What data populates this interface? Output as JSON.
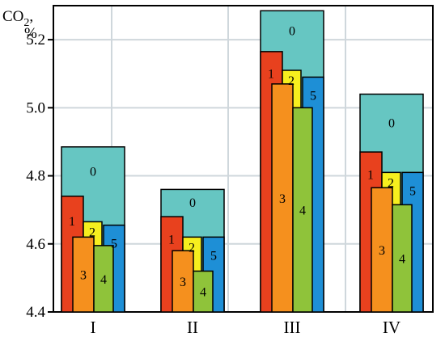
{
  "chart_data": {
    "type": "bar",
    "ylabel_main": "CO",
    "ylabel_sub": "2",
    "ylabel_tail": ",",
    "ylabel_unit": "%",
    "ylim": [
      4.4,
      5.3
    ],
    "yticks": [
      "4.4",
      "4.6",
      "4.8",
      "5.0",
      "5.2"
    ],
    "ytick_values": [
      4.4,
      4.6,
      4.8,
      5.0,
      5.2
    ],
    "grid": true,
    "categories": [
      "I",
      "II",
      "III",
      "IV"
    ],
    "series_labels": [
      "0",
      "1",
      "2",
      "3",
      "4",
      "5"
    ],
    "colors": {
      "0": "#66c6c2",
      "1": "#e8411e",
      "2": "#f6ef1e",
      "3": "#f5901e",
      "4": "#8fc33a",
      "5": "#1e8fd6",
      "grid": "#cfd7dc"
    },
    "groups": [
      {
        "category": "I",
        "values": {
          "0": 4.885,
          "1": 4.74,
          "2": 4.665,
          "3": 4.62,
          "4": 4.595,
          "5": 4.655
        }
      },
      {
        "category": "II",
        "values": {
          "0": 4.76,
          "1": 4.68,
          "2": 4.62,
          "3": 4.58,
          "4": 4.52,
          "5": 4.62
        }
      },
      {
        "category": "III",
        "values": {
          "0": 5.285,
          "1": 5.165,
          "2": 5.11,
          "3": 5.07,
          "4": 5.0,
          "5": 5.09
        }
      },
      {
        "category": "IV",
        "values": {
          "0": 5.04,
          "1": 4.87,
          "2": 4.81,
          "3": 4.765,
          "4": 4.715,
          "5": 4.81
        }
      }
    ]
  }
}
